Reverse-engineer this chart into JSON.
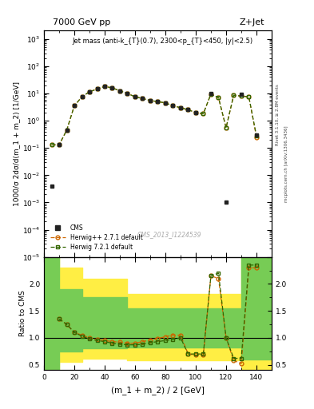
{
  "title_left": "7000 GeV pp",
  "title_right": "Z+Jet",
  "annotation": "Jet mass (anti-k_{T}(0.7), 2300<p_{T}<450, |y|<2.5)",
  "watermark": "CMS_2013_I1224539",
  "right_label": "mcplots.cern.ch [arXiv:1306.3436]",
  "right_label2": "Rivet 3.1.10, ≥ 2.8M events",
  "xlabel": "(m_1 + m_2) / 2 [GeV]",
  "ylabel": "1000/σ 2dσ/d(m_1 + m_2) [1/GeV]",
  "ylabel_ratio": "Ratio to CMS",
  "xlim": [
    0,
    150
  ],
  "ylim_main_log": [
    1e-05,
    2000
  ],
  "ylim_ratio": [
    0.4,
    2.5
  ],
  "cms_x": [
    5,
    10,
    15,
    20,
    25,
    30,
    35,
    40,
    45,
    50,
    55,
    60,
    65,
    70,
    75,
    80,
    85,
    90,
    95,
    100,
    110,
    120,
    130,
    140
  ],
  "cms_y": [
    0.004,
    0.13,
    0.45,
    3.5,
    7.5,
    11.5,
    14.5,
    18.0,
    16.0,
    12.5,
    10.0,
    7.5,
    6.5,
    5.5,
    5.0,
    4.5,
    3.5,
    3.0,
    2.5,
    2.0,
    10.0,
    0.001,
    9.0,
    0.3
  ],
  "herwig271_x": [
    5,
    10,
    15,
    20,
    25,
    30,
    35,
    40,
    45,
    50,
    55,
    60,
    65,
    70,
    75,
    80,
    85,
    90,
    95,
    100,
    105,
    110,
    115,
    120,
    125,
    130,
    135,
    140
  ],
  "herwig271_y": [
    0.13,
    0.13,
    0.45,
    3.5,
    7.5,
    11.5,
    14.5,
    18.0,
    16.0,
    12.5,
    10.0,
    7.5,
    6.5,
    5.5,
    5.0,
    4.5,
    3.5,
    3.0,
    2.5,
    2.0,
    1.8,
    9.5,
    7.0,
    0.55,
    8.5,
    8.0,
    7.5,
    0.25
  ],
  "herwig721_x": [
    5,
    10,
    15,
    20,
    25,
    30,
    35,
    40,
    45,
    50,
    55,
    60,
    65,
    70,
    75,
    80,
    85,
    90,
    95,
    100,
    105,
    110,
    115,
    120,
    125,
    130,
    135,
    140
  ],
  "herwig721_y": [
    0.13,
    0.13,
    0.45,
    3.5,
    7.5,
    11.5,
    14.5,
    18.0,
    16.0,
    12.5,
    10.0,
    7.5,
    6.5,
    5.5,
    5.0,
    4.5,
    3.5,
    3.0,
    2.5,
    2.0,
    1.8,
    9.5,
    7.0,
    0.55,
    8.5,
    8.0,
    7.5,
    0.28
  ],
  "ratio_x": [
    10,
    15,
    20,
    25,
    30,
    35,
    40,
    45,
    50,
    55,
    60,
    65,
    70,
    75,
    80,
    85,
    90,
    95,
    100,
    105,
    110,
    115,
    120,
    125,
    130,
    135,
    140
  ],
  "ratio_herwig271": [
    1.35,
    1.25,
    1.1,
    1.05,
    1.0,
    0.97,
    0.95,
    0.93,
    0.92,
    0.9,
    0.9,
    0.93,
    0.96,
    0.99,
    1.02,
    1.05,
    1.05,
    0.7,
    0.68,
    0.68,
    2.15,
    2.1,
    1.0,
    0.58,
    0.52,
    2.3,
    2.3
  ],
  "ratio_herwig721": [
    1.35,
    1.25,
    1.1,
    1.03,
    0.98,
    0.95,
    0.93,
    0.9,
    0.88,
    0.87,
    0.87,
    0.88,
    0.91,
    0.93,
    0.95,
    0.97,
    1.0,
    0.7,
    0.7,
    0.7,
    2.15,
    2.2,
    1.0,
    0.62,
    0.62,
    2.35,
    2.35
  ],
  "green_band_x": [
    0,
    5,
    10,
    25,
    55,
    100,
    130,
    150
  ],
  "green_band_low": [
    0.4,
    0.4,
    0.75,
    0.8,
    0.82,
    0.82,
    0.6,
    0.6
  ],
  "green_band_high": [
    2.5,
    2.5,
    1.9,
    1.75,
    1.55,
    1.55,
    2.5,
    2.5
  ],
  "yellow_band_x": [
    0,
    5,
    10,
    25,
    55,
    100,
    130,
    150
  ],
  "yellow_band_low": [
    0.4,
    0.4,
    0.55,
    0.62,
    0.58,
    0.58,
    0.4,
    0.4
  ],
  "yellow_band_high": [
    2.5,
    2.5,
    2.3,
    2.1,
    1.82,
    1.82,
    2.5,
    2.5
  ],
  "color_herwig271": "#cc6600",
  "color_herwig721": "#336600",
  "color_cms": "#222222",
  "color_green_band": "#77cc55",
  "color_yellow_band": "#ffee44",
  "background_color": "#ffffff"
}
